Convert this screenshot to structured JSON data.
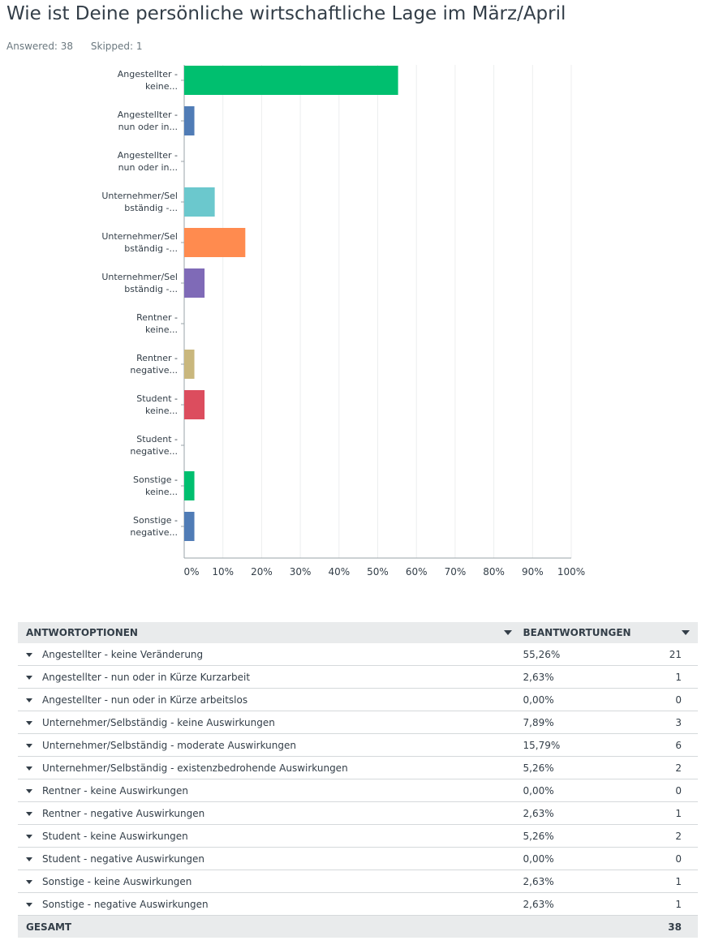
{
  "question": {
    "title": "Wie ist Deine persönliche wirtschaftliche Lage im März/April",
    "answered": "Answered: 38",
    "skipped": "Skipped: 1"
  },
  "chart_data": {
    "type": "bar",
    "orientation": "horizontal",
    "categories": [
      [
        "Angestellter -",
        "keine..."
      ],
      [
        "Angestellter -",
        "nun oder in..."
      ],
      [
        "Angestellter -",
        "nun oder in..."
      ],
      [
        "Unternehmer/Sel",
        "bständig -..."
      ],
      [
        "Unternehmer/Sel",
        "bständig -..."
      ],
      [
        "Unternehmer/Sel",
        "bständig -..."
      ],
      [
        "Rentner -",
        "keine..."
      ],
      [
        "Rentner -",
        "negative..."
      ],
      [
        "Student -",
        "keine..."
      ],
      [
        "Student -",
        "negative..."
      ],
      [
        "Sonstige -",
        "keine..."
      ],
      [
        "Sonstige -",
        "negative..."
      ]
    ],
    "values": [
      55.26,
      2.63,
      0.0,
      7.89,
      15.79,
      5.26,
      0.0,
      2.63,
      5.26,
      0.0,
      2.63,
      2.63
    ],
    "colors": [
      "#00bf6f",
      "#507cb6",
      "#507cb6",
      "#6bc8cd",
      "#ff8b4f",
      "#7f6ab7",
      "#7f6ab7",
      "#c9b77d",
      "#dc4d5e",
      "#dc4d5e",
      "#00bf6f",
      "#507cb6"
    ],
    "x_ticks": [
      "0%",
      "10%",
      "20%",
      "30%",
      "40%",
      "50%",
      "60%",
      "70%",
      "80%",
      "90%",
      "100%"
    ],
    "xlim": [
      0,
      100
    ],
    "grid": true
  },
  "table": {
    "header_option": "ANTWORTOPTIONEN",
    "header_responses": "BEANTWORTUNGEN",
    "rows": [
      {
        "label": "Angestellter - keine Veränderung",
        "pct": "55,26%",
        "count": "21"
      },
      {
        "label": "Angestellter - nun oder in Kürze Kurzarbeit",
        "pct": "2,63%",
        "count": "1"
      },
      {
        "label": "Angestellter - nun oder in Kürze arbeitslos",
        "pct": "0,00%",
        "count": "0"
      },
      {
        "label": "Unternehmer/Selbständig - keine Auswirkungen",
        "pct": "7,89%",
        "count": "3"
      },
      {
        "label": "Unternehmer/Selbständig - moderate Auswirkungen",
        "pct": "15,79%",
        "count": "6"
      },
      {
        "label": "Unternehmer/Selbständig - existenzbedrohende Auswirkungen",
        "pct": "5,26%",
        "count": "2"
      },
      {
        "label": "Rentner - keine Auswirkungen",
        "pct": "0,00%",
        "count": "0"
      },
      {
        "label": "Rentner - negative Auswirkungen",
        "pct": "2,63%",
        "count": "1"
      },
      {
        "label": "Student - keine Auswirkungen",
        "pct": "5,26%",
        "count": "2"
      },
      {
        "label": "Student - negative Auswirkungen",
        "pct": "0,00%",
        "count": "0"
      },
      {
        "label": "Sonstige - keine Auswirkungen",
        "pct": "2,63%",
        "count": "1"
      },
      {
        "label": "Sonstige - negative Auswirkungen",
        "pct": "2,63%",
        "count": "1"
      }
    ],
    "total_label": "GESAMT",
    "total_count": "38"
  }
}
